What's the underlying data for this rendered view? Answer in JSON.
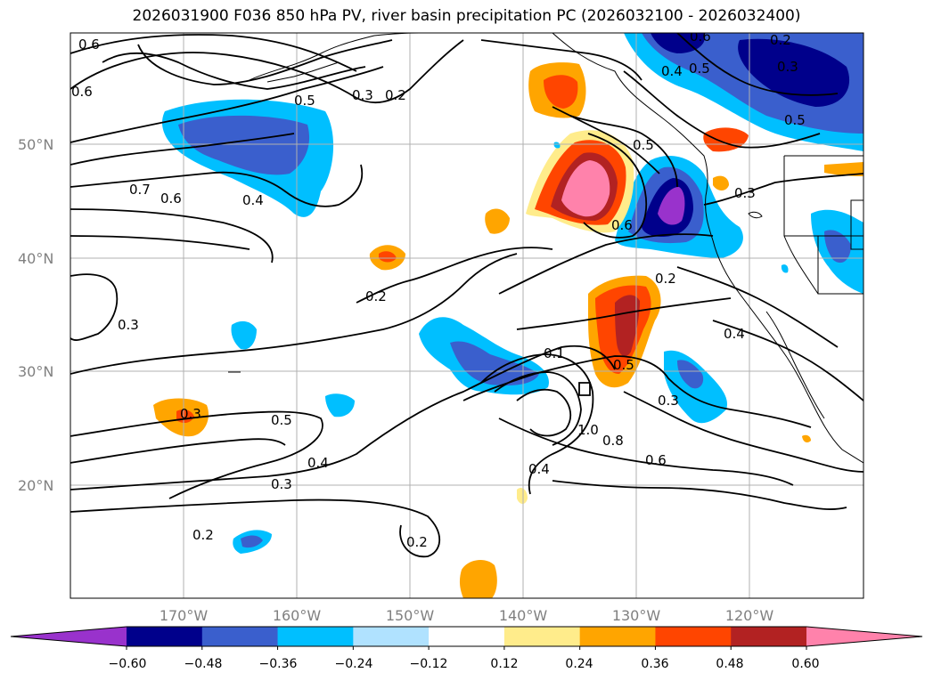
{
  "title": "2026031900 F036 850 hPa PV, river basin precipitation PC (2026032100 - 2026032400)",
  "map": {
    "lat_ticks": [
      "50°N",
      "40°N",
      "30°N",
      "20°N"
    ],
    "lon_ticks": [
      "170°W",
      "160°W",
      "150°W",
      "140°W",
      "130°W",
      "120°W"
    ],
    "contour_labels": [
      "0.6",
      "0.6",
      "0.2",
      "0.3",
      "0.5",
      "0.7",
      "0.6",
      "0.4",
      "0.5",
      "0.6",
      "0.2",
      "0.3",
      "0.5",
      "0.4",
      "0.6",
      "0.5",
      "0.3",
      "0.2",
      "0.4",
      "0.3",
      "0.1",
      "0.3",
      "0.5",
      "1.0",
      "0.8",
      "0.6",
      "0.4",
      "0.2",
      "0.3",
      "0.5",
      "0.4",
      "0.3",
      "0.2",
      "0.2"
    ]
  },
  "colorbar": {
    "colors": [
      "#9932cc",
      "#00008b",
      "#3a5fcd",
      "#00bfff",
      "#b0e2ff",
      "#ffffff",
      "#ffec8b",
      "#ffa500",
      "#ff4500",
      "#b22222",
      "#ff82ab"
    ],
    "ticks": [
      "−0.60",
      "−0.48",
      "−0.36",
      "−0.24",
      "−0.12",
      "0.12",
      "0.24",
      "0.36",
      "0.48",
      "0.60"
    ]
  }
}
